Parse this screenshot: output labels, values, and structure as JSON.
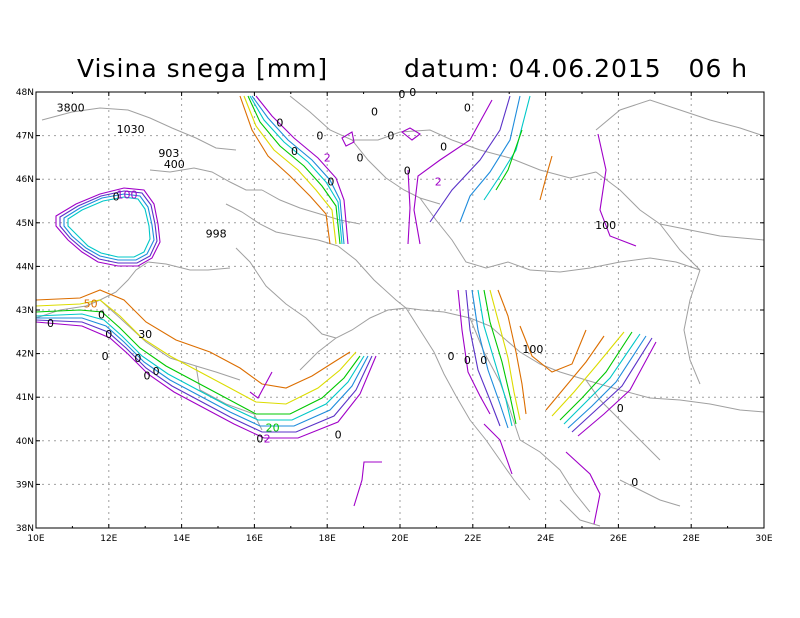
{
  "header": {
    "title": "Visina snega [mm]",
    "datetime": "datum: 04.06.2015   06 h"
  },
  "axes": {
    "lat_labels": [
      "48N",
      "47N",
      "46N",
      "45N",
      "44N",
      "43N",
      "42N",
      "41N",
      "40N",
      "39N",
      "38N"
    ],
    "lon_labels": [
      "10E",
      "12E",
      "14E",
      "16E",
      "18E",
      "20E",
      "22E",
      "24E",
      "26E",
      "28E",
      "30E"
    ],
    "lon_range": [
      10,
      30
    ],
    "lat_range": [
      38,
      48
    ],
    "grid": "dotted"
  },
  "colors": {
    "c2": "#a000c8",
    "c5": "#5a32c8",
    "c10": "#1e8cdc",
    "c20": "#00c8c8",
    "c30": "#00c800",
    "c50": "#dcdc00",
    "c100": "#dc6e00",
    "border": "#a0a0a0"
  },
  "labels": [
    {
      "text": "3800",
      "lon": 10.95,
      "lat": 47.65,
      "color": "#000000"
    },
    {
      "text": "1030",
      "lon": 12.6,
      "lat": 47.15,
      "color": "#000000"
    },
    {
      "text": "903",
      "lon": 13.65,
      "lat": 46.6,
      "color": "#000000"
    },
    {
      "text": "400",
      "lon": 13.8,
      "lat": 46.35,
      "color": "#000000"
    },
    {
      "text": "998",
      "lon": 14.95,
      "lat": 44.75,
      "color": "#000000"
    },
    {
      "text": "100",
      "lon": 12.5,
      "lat": 45.65,
      "color": "#a000c8"
    },
    {
      "text": "0",
      "lon": 12.2,
      "lat": 45.6,
      "color": "#000000"
    },
    {
      "text": "50",
      "lon": 11.5,
      "lat": 43.15,
      "color": "#dc6e00"
    },
    {
      "text": "30",
      "lon": 13.0,
      "lat": 42.45,
      "color": "#000000"
    },
    {
      "text": "0",
      "lon": 10.4,
      "lat": 42.7,
      "color": "#000000"
    },
    {
      "text": "0",
      "lon": 11.8,
      "lat": 42.9,
      "color": "#000000"
    },
    {
      "text": "0",
      "lon": 12.0,
      "lat": 42.45,
      "color": "#000000"
    },
    {
      "text": "0",
      "lon": 11.9,
      "lat": 41.95,
      "color": "#000000"
    },
    {
      "text": "0",
      "lon": 12.8,
      "lat": 41.9,
      "color": "#000000"
    },
    {
      "text": "0",
      "lon": 13.05,
      "lat": 41.5,
      "color": "#000000"
    },
    {
      "text": "0",
      "lon": 13.3,
      "lat": 41.6,
      "color": "#000000"
    },
    {
      "text": "20",
      "lon": 16.5,
      "lat": 40.3,
      "color": "#00c800"
    },
    {
      "text": "0",
      "lon": 16.15,
      "lat": 40.05,
      "color": "#000000"
    },
    {
      "text": "2",
      "lon": 16.35,
      "lat": 40.05,
      "color": "#a000c8"
    },
    {
      "text": "0",
      "lon": 18.3,
      "lat": 40.15,
      "color": "#000000"
    },
    {
      "text": "0",
      "lon": 16.7,
      "lat": 47.3,
      "color": "#000000"
    },
    {
      "text": "0",
      "lon": 17.1,
      "lat": 46.65,
      "color": "#000000"
    },
    {
      "text": "0",
      "lon": 17.8,
      "lat": 47.0,
      "color": "#000000"
    },
    {
      "text": "0",
      "lon": 18.1,
      "lat": 45.95,
      "color": "#000000"
    },
    {
      "text": "2",
      "lon": 18.0,
      "lat": 46.5,
      "color": "#a000c8"
    },
    {
      "text": "0",
      "lon": 18.9,
      "lat": 46.5,
      "color": "#000000"
    },
    {
      "text": "0",
      "lon": 19.3,
      "lat": 47.55,
      "color": "#000000"
    },
    {
      "text": "0",
      "lon": 19.75,
      "lat": 47.0,
      "color": "#000000"
    },
    {
      "text": "0",
      "lon": 20.05,
      "lat": 47.95,
      "color": "#000000"
    },
    {
      "text": "0",
      "lon": 20.35,
      "lat": 48.0,
      "color": "#000000"
    },
    {
      "text": "0",
      "lon": 20.2,
      "lat": 46.2,
      "color": "#000000"
    },
    {
      "text": "0",
      "lon": 21.2,
      "lat": 46.75,
      "color": "#000000"
    },
    {
      "text": "0",
      "lon": 21.85,
      "lat": 47.65,
      "color": "#000000"
    },
    {
      "text": "2",
      "lon": 21.05,
      "lat": 45.95,
      "color": "#a000c8"
    },
    {
      "text": "100",
      "lon": 25.65,
      "lat": 44.95,
      "color": "#000000"
    },
    {
      "text": "100",
      "lon": 23.65,
      "lat": 42.1,
      "color": "#000000"
    },
    {
      "text": "0",
      "lon": 21.4,
      "lat": 41.95,
      "color": "#000000"
    },
    {
      "text": "0",
      "lon": 21.85,
      "lat": 41.85,
      "color": "#000000"
    },
    {
      "text": "0",
      "lon": 22.3,
      "lat": 41.85,
      "color": "#000000"
    },
    {
      "text": "0",
      "lon": 26.05,
      "lat": 40.75,
      "color": "#000000"
    },
    {
      "text": "0",
      "lon": 26.45,
      "lat": 39.05,
      "color": "#000000"
    }
  ]
}
